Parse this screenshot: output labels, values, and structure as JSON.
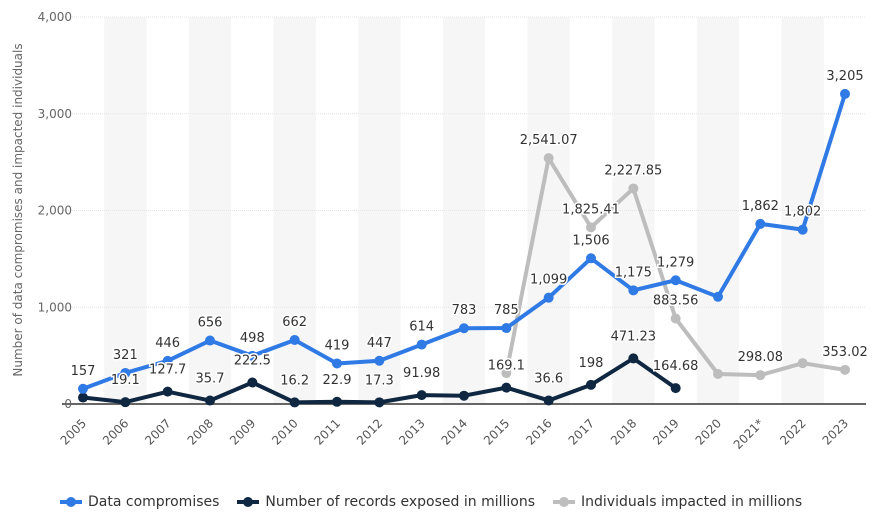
{
  "chart_data": {
    "type": "line",
    "ylabel": "Number of data compromises and impacted individuals",
    "xlabel": "",
    "ylim": [
      0,
      4000
    ],
    "yticks": [
      "0",
      "1,000",
      "2,000",
      "3,000",
      "4,000"
    ],
    "grid": true,
    "legend_position": "bottom",
    "categories": [
      "2005",
      "2006",
      "2007",
      "2008",
      "2009",
      "2010",
      "2011",
      "2012",
      "2013",
      "2014",
      "2015",
      "2016",
      "2017",
      "2018",
      "2019",
      "2020",
      "2021*",
      "2022",
      "2023"
    ],
    "series": [
      {
        "name": "Data compromises",
        "color": "#2f7ae5",
        "values": [
          157,
          321,
          446,
          656,
          498,
          662,
          419,
          447,
          614,
          783,
          785,
          1099,
          1506,
          1175,
          1279,
          1108,
          1862,
          1802,
          3205
        ],
        "labels": [
          "157",
          "321",
          "446",
          "656",
          "498",
          "662",
          "419",
          "447",
          "614",
          "783",
          "785",
          "1,099",
          "1,506",
          "1,175",
          "1,279",
          null,
          "1,862",
          "1,802",
          "3,205"
        ]
      },
      {
        "name": "Number of records exposed in millions",
        "color": "#0f2740",
        "values": [
          66.9,
          19.1,
          127.7,
          35.7,
          222.5,
          16.2,
          22.9,
          17.3,
          91.98,
          85.61,
          169.1,
          36.6,
          198,
          471.23,
          164.68,
          null,
          null,
          null,
          null
        ],
        "labels": [
          null,
          "19.1",
          "127.7",
          "35.7",
          "222.5",
          "16.2",
          "22.9",
          "17.3",
          "91.98",
          null,
          "169.1",
          "36.6",
          "198",
          "471.23",
          "164.68",
          null,
          null,
          null,
          null
        ]
      },
      {
        "name": "Individuals impacted in millions",
        "color": "#bdbdbd",
        "values": [
          null,
          null,
          null,
          null,
          null,
          null,
          null,
          null,
          null,
          null,
          320,
          2541.07,
          1825.41,
          2227.85,
          883.56,
          310,
          298.08,
          422,
          353.02
        ],
        "labels": [
          null,
          null,
          null,
          null,
          null,
          null,
          null,
          null,
          null,
          null,
          null,
          "2,541.07",
          "1,825.41",
          "2,227.85",
          "883.56",
          null,
          "298.08",
          null,
          "353.02"
        ]
      }
    ]
  }
}
